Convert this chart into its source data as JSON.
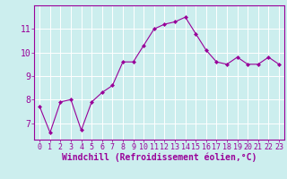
{
  "x": [
    0,
    1,
    2,
    3,
    4,
    5,
    6,
    7,
    8,
    9,
    10,
    11,
    12,
    13,
    14,
    15,
    16,
    17,
    18,
    19,
    20,
    21,
    22,
    23
  ],
  "y": [
    7.7,
    6.6,
    7.9,
    8.0,
    6.7,
    7.9,
    8.3,
    8.6,
    9.6,
    9.6,
    10.3,
    11.0,
    11.2,
    11.3,
    11.5,
    10.8,
    10.1,
    9.6,
    9.5,
    9.8,
    9.5,
    9.5,
    9.8,
    9.5
  ],
  "line_color": "#990099",
  "marker": "D",
  "marker_size": 2,
  "bg_color": "#cceeee",
  "grid_color": "#ffffff",
  "xlabel": "Windchill (Refroidissement éolien,°C)",
  "xlabel_color": "#990099",
  "tick_color": "#990099",
  "spine_color": "#990099",
  "xlim": [
    -0.5,
    23.5
  ],
  "ylim": [
    6.3,
    12.0
  ],
  "yticks": [
    7,
    8,
    9,
    10,
    11
  ],
  "xticks": [
    0,
    1,
    2,
    3,
    4,
    5,
    6,
    7,
    8,
    9,
    10,
    11,
    12,
    13,
    14,
    15,
    16,
    17,
    18,
    19,
    20,
    21,
    22,
    23
  ],
  "tick_fontsize": 6,
  "ylabel_fontsize": 7,
  "xlabel_fontsize": 7,
  "linewidth": 0.8
}
